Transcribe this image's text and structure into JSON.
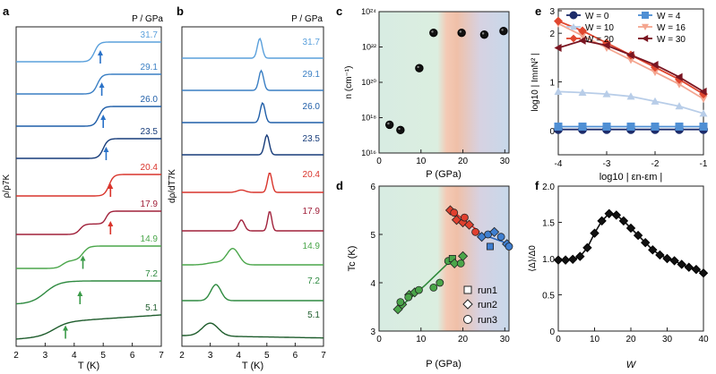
{
  "figure": {
    "panel_letters": [
      "a",
      "b",
      "c",
      "d",
      "e",
      "f"
    ]
  },
  "colors": {
    "pressure": {
      "31.7": "#5aa0dc",
      "29.1": "#3a7fc4",
      "26.0": "#1f5ea8",
      "23.5": "#173c7a",
      "20.4": "#d9342b",
      "17.9": "#a0203a",
      "14.9": "#4aa64a",
      "7.2": "#2e8a40",
      "5.1": "#1e5c2c"
    },
    "arrow_blue": "#2a72c8",
    "arrow_red": "#d9342b",
    "arrow_green": "#3a9a48",
    "w": {
      "0": "#1d2c6b",
      "4": "#4f8fd4",
      "10": "#b8cde8",
      "16": "#f4a58f",
      "20": "#e0462e",
      "30": "#7a1521"
    }
  },
  "chart_data": [
    {
      "panel": "a",
      "type": "line",
      "title": "P / GPa",
      "xlabel": "T (K)",
      "ylabel": "ρ/ρ7K",
      "xlim": [
        2,
        7
      ],
      "xticks": [
        2,
        3,
        4,
        5,
        6,
        7
      ],
      "series_labels": [
        "31.7",
        "29.1",
        "26.0",
        "23.5",
        "20.4",
        "17.9",
        "14.9",
        "7.2",
        "5.1"
      ],
      "onset_T": [
        4.7,
        4.8,
        4.85,
        5.0,
        5.2,
        5.0,
        4.1,
        3.7,
        3.5
      ],
      "arrow_T": [
        4.9,
        4.95,
        5.0,
        5.1,
        5.25,
        5.25,
        4.3,
        4.2,
        3.7
      ]
    },
    {
      "panel": "b",
      "type": "line",
      "title": "P / GPa",
      "xlabel": "T (K)",
      "ylabel": "dρ/dT7K",
      "xlim": [
        2,
        7
      ],
      "xticks": [
        2,
        3,
        4,
        5,
        6,
        7
      ],
      "series_labels": [
        "31.7",
        "29.1",
        "26.0",
        "23.5",
        "20.4",
        "17.9",
        "14.9",
        "7.2",
        "5.1"
      ],
      "peak_T": [
        4.75,
        4.8,
        4.85,
        5.0,
        5.1,
        5.1,
        3.8,
        3.2,
        3.0
      ]
    },
    {
      "panel": "c",
      "type": "scatter",
      "xlabel": "P (GPa)",
      "ylabel": "n (cm⁻¹)",
      "xlim": [
        0,
        31
      ],
      "xticks": [
        0,
        10,
        20,
        30
      ],
      "ylim_log10": [
        16,
        24
      ],
      "yticks": [
        "10¹⁶",
        "10¹⁸",
        "10²⁰",
        "10²²",
        "10²⁴"
      ],
      "points": [
        {
          "P": 2.5,
          "log10_n": 17.6
        },
        {
          "P": 5.1,
          "log10_n": 17.3
        },
        {
          "P": 9.6,
          "log10_n": 20.8
        },
        {
          "P": 13.0,
          "log10_n": 22.8
        },
        {
          "P": 19.7,
          "log10_n": 22.8
        },
        {
          "P": 25.1,
          "log10_n": 22.7
        },
        {
          "P": 29.7,
          "log10_n": 22.9
        }
      ]
    },
    {
      "panel": "d",
      "type": "scatter",
      "xlabel": "P (GPa)",
      "ylabel": "Tc (K)",
      "xlim": [
        0,
        31
      ],
      "xticks": [
        0,
        10,
        20,
        30
      ],
      "ylim": [
        3,
        6
      ],
      "yticks": [
        3,
        4,
        5,
        6
      ],
      "legend": [
        "run1",
        "run2",
        "run3"
      ],
      "points": [
        {
          "P": 4.5,
          "Tc": 3.45,
          "m": "d",
          "c": "g"
        },
        {
          "P": 5.5,
          "Tc": 3.55,
          "m": "d",
          "c": "g"
        },
        {
          "P": 7.2,
          "Tc": 3.75,
          "m": "d",
          "c": "g"
        },
        {
          "P": 8.5,
          "Tc": 3.8,
          "m": "d",
          "c": "g"
        },
        {
          "P": 5.1,
          "Tc": 3.6,
          "m": "o",
          "c": "g"
        },
        {
          "P": 7.0,
          "Tc": 3.7,
          "m": "o",
          "c": "g"
        },
        {
          "P": 9.5,
          "Tc": 3.85,
          "m": "o",
          "c": "g"
        },
        {
          "P": 13.0,
          "Tc": 3.9,
          "m": "o",
          "c": "g"
        },
        {
          "P": 14.5,
          "Tc": 4.0,
          "m": "o",
          "c": "g"
        },
        {
          "P": 16.5,
          "Tc": 4.45,
          "m": "o",
          "c": "g"
        },
        {
          "P": 17.5,
          "Tc": 4.5,
          "m": "s",
          "c": "g"
        },
        {
          "P": 18.0,
          "Tc": 4.4,
          "m": "d",
          "c": "g"
        },
        {
          "P": 20.0,
          "Tc": 4.55,
          "m": "d",
          "c": "g"
        },
        {
          "P": 19.5,
          "Tc": 4.4,
          "m": "o",
          "c": "g"
        },
        {
          "P": 17.0,
          "Tc": 5.5,
          "m": "d",
          "c": "r"
        },
        {
          "P": 18.5,
          "Tc": 5.3,
          "m": "d",
          "c": "r"
        },
        {
          "P": 20.0,
          "Tc": 5.25,
          "m": "d",
          "c": "r"
        },
        {
          "P": 21.5,
          "Tc": 5.2,
          "m": "d",
          "c": "r"
        },
        {
          "P": 17.9,
          "Tc": 5.45,
          "m": "o",
          "c": "r"
        },
        {
          "P": 20.4,
          "Tc": 5.35,
          "m": "o",
          "c": "r"
        },
        {
          "P": 23.0,
          "Tc": 5.05,
          "m": "o",
          "c": "r"
        },
        {
          "P": 24.5,
          "Tc": 4.95,
          "m": "d",
          "c": "b"
        },
        {
          "P": 26.0,
          "Tc": 5.0,
          "m": "o",
          "c": "b"
        },
        {
          "P": 27.5,
          "Tc": 5.05,
          "m": "d",
          "c": "b"
        },
        {
          "P": 26.5,
          "Tc": 4.75,
          "m": "s",
          "c": "b"
        },
        {
          "P": 29.1,
          "Tc": 4.95,
          "m": "o",
          "c": "b"
        },
        {
          "P": 30.5,
          "Tc": 4.8,
          "m": "d",
          "c": "b"
        },
        {
          "P": 31.0,
          "Tc": 4.75,
          "m": "o",
          "c": "b"
        }
      ],
      "fits": {
        "green": [
          [
            5,
            3.5
          ],
          [
            8,
            3.72
          ],
          [
            11,
            3.95
          ],
          [
            14,
            4.2
          ],
          [
            17,
            4.45
          ]
        ],
        "red": [
          [
            16.5,
            5.55
          ],
          [
            24,
            5.05
          ]
        ],
        "blue": [
          [
            23,
            5.05
          ],
          [
            31,
            4.8
          ]
        ]
      }
    },
    {
      "panel": "e",
      "type": "line",
      "xlabel": "log10 | εn-εm |",
      "ylabel": "log10 | ImnN² |",
      "xlim": [
        -4,
        -1
      ],
      "xticks": [
        -4,
        -3,
        -2,
        -1
      ],
      "ylim": [
        -0.5,
        2.5
      ],
      "yticks": [
        0,
        1,
        2,
        3
      ],
      "x": [
        -4,
        -3.5,
        -3,
        -2.5,
        -2,
        -1.5,
        -1
      ],
      "series": [
        {
          "name": "W = 0",
          "key": "0",
          "marker": "o",
          "values": [
            0.02,
            0.02,
            0.02,
            0.02,
            0.02,
            0.02,
            0.02
          ]
        },
        {
          "name": "W = 4",
          "key": "4",
          "marker": "s",
          "values": [
            0.08,
            0.08,
            0.08,
            0.08,
            0.08,
            0.08,
            0.08
          ]
        },
        {
          "name": "W = 10",
          "key": "10",
          "marker": "^",
          "values": [
            0.8,
            0.78,
            0.75,
            0.7,
            0.6,
            0.5,
            0.35
          ]
        },
        {
          "name": "W = 16",
          "key": "16",
          "marker": "v",
          "values": [
            2.2,
            1.95,
            1.7,
            1.45,
            1.2,
            0.95,
            0.65
          ]
        },
        {
          "name": "W = 20",
          "key": "20",
          "marker": "D",
          "values": [
            2.25,
            2.05,
            1.8,
            1.55,
            1.3,
            1.05,
            0.75
          ]
        },
        {
          "name": "W = 30",
          "key": "30",
          "marker": "<",
          "values": [
            1.7,
            1.85,
            1.75,
            1.55,
            1.35,
            1.1,
            0.8
          ]
        }
      ]
    },
    {
      "panel": "f",
      "type": "line",
      "xlabel": "W",
      "ylabel": "⟨Δ⟩/Δ0",
      "xlim": [
        0,
        40
      ],
      "xticks": [
        0,
        10,
        20,
        30,
        40
      ],
      "ylim": [
        0,
        2
      ],
      "yticks": [
        "0",
        "0.5",
        "1.0",
        "1.5",
        "2.0"
      ],
      "x": [
        0,
        2,
        4,
        6,
        8,
        10,
        12,
        14,
        16,
        18,
        20,
        22,
        24,
        26,
        28,
        30,
        32,
        34,
        36,
        38,
        40
      ],
      "values": [
        0.98,
        0.98,
        0.99,
        1.03,
        1.15,
        1.35,
        1.52,
        1.62,
        1.6,
        1.52,
        1.42,
        1.32,
        1.22,
        1.12,
        1.05,
        1.0,
        0.97,
        0.92,
        0.88,
        0.85,
        0.8
      ]
    }
  ]
}
